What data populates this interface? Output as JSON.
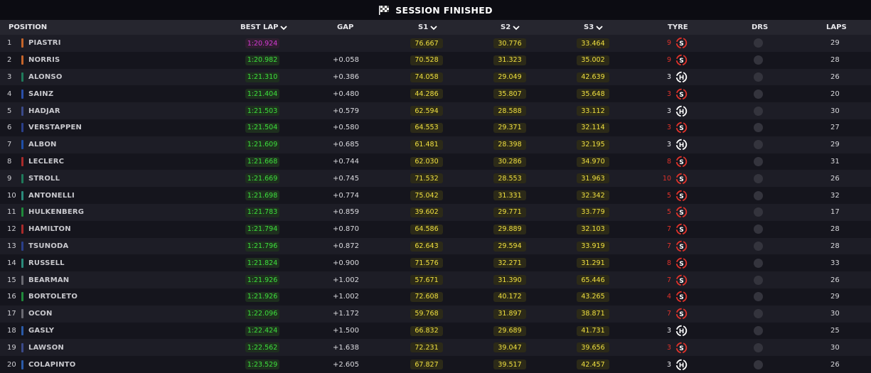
{
  "session": {
    "status": "SESSION FINISHED",
    "flag_icon": "chequered-flag-icon"
  },
  "columns": {
    "position": "POSITION",
    "best_lap": "BEST LAP",
    "gap": "GAP",
    "s1": "S1",
    "s2": "S2",
    "s3": "S3",
    "tyre": "TYRE",
    "drs": "DRS",
    "laps": "LAPS"
  },
  "colors": {
    "purple_best": "#d53ad5",
    "green_best": "#3de03d",
    "sector_yellow": "#f0e040",
    "soft_tyre": "#e0322a",
    "hard_tyre": "#ffffff"
  },
  "rows": [
    {
      "pos": "1",
      "name": "PIASTRI",
      "team_color": "#c4642a",
      "best": "1:20.924",
      "best_purple": true,
      "gap": "",
      "s1": "76.667",
      "s2": "30.776",
      "s3": "33.464",
      "tyre_laps": "9",
      "tyre": "S",
      "laps": "29"
    },
    {
      "pos": "2",
      "name": "NORRIS",
      "team_color": "#c4642a",
      "best": "1:20.982",
      "best_purple": false,
      "gap": "+0.058",
      "s1": "70.528",
      "s2": "31.323",
      "s3": "35.002",
      "tyre_laps": "9",
      "tyre": "S",
      "laps": "28"
    },
    {
      "pos": "3",
      "name": "ALONSO",
      "team_color": "#1f7a5a",
      "best": "1:21.310",
      "best_purple": false,
      "gap": "+0.386",
      "s1": "74.058",
      "s2": "29.049",
      "s3": "42.639",
      "tyre_laps": "3",
      "tyre": "H",
      "laps": "26"
    },
    {
      "pos": "4",
      "name": "SAINZ",
      "team_color": "#2a4fa8",
      "best": "1:21.404",
      "best_purple": false,
      "gap": "+0.480",
      "s1": "44.286",
      "s2": "35.807",
      "s3": "35.648",
      "tyre_laps": "3",
      "tyre": "S",
      "laps": "20"
    },
    {
      "pos": "5",
      "name": "HADJAR",
      "team_color": "#3a4a8a",
      "best": "1:21.503",
      "best_purple": false,
      "gap": "+0.579",
      "s1": "62.594",
      "s2": "28.588",
      "s3": "33.112",
      "tyre_laps": "3",
      "tyre": "H",
      "laps": "30"
    },
    {
      "pos": "6",
      "name": "VERSTAPPEN",
      "team_color": "#2a3f8a",
      "best": "1:21.504",
      "best_purple": false,
      "gap": "+0.580",
      "s1": "64.553",
      "s2": "29.371",
      "s3": "32.114",
      "tyre_laps": "3",
      "tyre": "S",
      "laps": "27"
    },
    {
      "pos": "7",
      "name": "ALBON",
      "team_color": "#1f4fa8",
      "best": "1:21.609",
      "best_purple": false,
      "gap": "+0.685",
      "s1": "61.481",
      "s2": "28.398",
      "s3": "32.195",
      "tyre_laps": "3",
      "tyre": "H",
      "laps": "29"
    },
    {
      "pos": "8",
      "name": "LECLERC",
      "team_color": "#a82a2a",
      "best": "1:21.668",
      "best_purple": false,
      "gap": "+0.744",
      "s1": "62.030",
      "s2": "30.286",
      "s3": "34.970",
      "tyre_laps": "8",
      "tyre": "S",
      "laps": "31"
    },
    {
      "pos": "9",
      "name": "STROLL",
      "team_color": "#1f7a5a",
      "best": "1:21.669",
      "best_purple": false,
      "gap": "+0.745",
      "s1": "71.532",
      "s2": "28.553",
      "s3": "31.963",
      "tyre_laps": "10",
      "tyre": "S",
      "laps": "26"
    },
    {
      "pos": "10",
      "name": "ANTONELLI",
      "team_color": "#2a8a7a",
      "best": "1:21.698",
      "best_purple": false,
      "gap": "+0.774",
      "s1": "75.042",
      "s2": "31.331",
      "s3": "32.342",
      "tyre_laps": "5",
      "tyre": "S",
      "laps": "32"
    },
    {
      "pos": "11",
      "name": "HULKENBERG",
      "team_color": "#1f8a3a",
      "best": "1:21.783",
      "best_purple": false,
      "gap": "+0.859",
      "s1": "39.602",
      "s2": "29.771",
      "s3": "33.779",
      "tyre_laps": "5",
      "tyre": "S",
      "laps": "17"
    },
    {
      "pos": "12",
      "name": "HAMILTON",
      "team_color": "#a82a2a",
      "best": "1:21.794",
      "best_purple": false,
      "gap": "+0.870",
      "s1": "64.586",
      "s2": "29.889",
      "s3": "32.103",
      "tyre_laps": "7",
      "tyre": "S",
      "laps": "28"
    },
    {
      "pos": "13",
      "name": "TSUNODA",
      "team_color": "#2a3f8a",
      "best": "1:21.796",
      "best_purple": false,
      "gap": "+0.872",
      "s1": "62.643",
      "s2": "29.594",
      "s3": "33.919",
      "tyre_laps": "7",
      "tyre": "S",
      "laps": "28"
    },
    {
      "pos": "14",
      "name": "RUSSELL",
      "team_color": "#2a8a7a",
      "best": "1:21.824",
      "best_purple": false,
      "gap": "+0.900",
      "s1": "71.576",
      "s2": "32.271",
      "s3": "31.291",
      "tyre_laps": "8",
      "tyre": "S",
      "laps": "33"
    },
    {
      "pos": "15",
      "name": "BEARMAN",
      "team_color": "#6a6a72",
      "best": "1:21.926",
      "best_purple": false,
      "gap": "+1.002",
      "s1": "57.671",
      "s2": "31.390",
      "s3": "65.446",
      "tyre_laps": "7",
      "tyre": "S",
      "laps": "26"
    },
    {
      "pos": "16",
      "name": "BORTOLETO",
      "team_color": "#1f8a3a",
      "best": "1:21.926",
      "best_purple": false,
      "gap": "+1.002",
      "s1": "72.608",
      "s2": "40.172",
      "s3": "43.265",
      "tyre_laps": "4",
      "tyre": "S",
      "laps": "29"
    },
    {
      "pos": "17",
      "name": "OCON",
      "team_color": "#6a6a72",
      "best": "1:22.096",
      "best_purple": false,
      "gap": "+1.172",
      "s1": "59.768",
      "s2": "31.897",
      "s3": "38.871",
      "tyre_laps": "7",
      "tyre": "S",
      "laps": "30"
    },
    {
      "pos": "18",
      "name": "GASLY",
      "team_color": "#2a5aa8",
      "best": "1:22.424",
      "best_purple": false,
      "gap": "+1.500",
      "s1": "66.832",
      "s2": "29.689",
      "s3": "41.731",
      "tyre_laps": "3",
      "tyre": "H",
      "laps": "25"
    },
    {
      "pos": "19",
      "name": "LAWSON",
      "team_color": "#3a4a8a",
      "best": "1:22.562",
      "best_purple": false,
      "gap": "+1.638",
      "s1": "72.231",
      "s2": "39.047",
      "s3": "39.656",
      "tyre_laps": "3",
      "tyre": "S",
      "laps": "30"
    },
    {
      "pos": "20",
      "name": "COLAPINTO",
      "team_color": "#2a5aa8",
      "best": "1:23.529",
      "best_purple": false,
      "gap": "+2.605",
      "s1": "67.827",
      "s2": "39.517",
      "s3": "42.457",
      "tyre_laps": "3",
      "tyre": "H",
      "laps": "26"
    }
  ]
}
